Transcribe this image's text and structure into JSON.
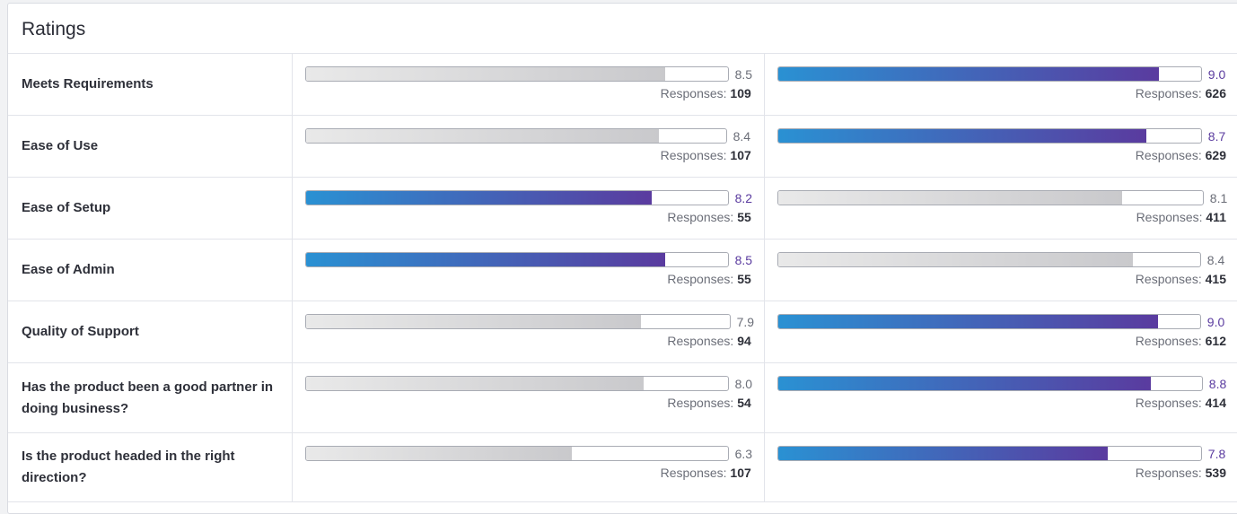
{
  "card": {
    "title": "Ratings"
  },
  "responses_label": "Responses:",
  "colors": {
    "accent_start": "#2a91d3",
    "accent_end": "#5a3b9f",
    "neutral_bar": "#c9c9cc"
  },
  "rows": [
    {
      "label": "Meets Requirements",
      "left": {
        "score": "8.5",
        "responses": "109",
        "highlight": false
      },
      "right": {
        "score": "9.0",
        "responses": "626",
        "highlight": true
      }
    },
    {
      "label": "Ease of Use",
      "left": {
        "score": "8.4",
        "responses": "107",
        "highlight": false
      },
      "right": {
        "score": "8.7",
        "responses": "629",
        "highlight": true
      }
    },
    {
      "label": "Ease of Setup",
      "left": {
        "score": "8.2",
        "responses": "55",
        "highlight": true
      },
      "right": {
        "score": "8.1",
        "responses": "411",
        "highlight": false
      }
    },
    {
      "label": "Ease of Admin",
      "left": {
        "score": "8.5",
        "responses": "55",
        "highlight": true
      },
      "right": {
        "score": "8.4",
        "responses": "415",
        "highlight": false
      }
    },
    {
      "label": "Quality of Support",
      "left": {
        "score": "7.9",
        "responses": "94",
        "highlight": false
      },
      "right": {
        "score": "9.0",
        "responses": "612",
        "highlight": true
      }
    },
    {
      "label": "Has the product been a good partner in doing business?",
      "left": {
        "score": "8.0",
        "responses": "54",
        "highlight": false
      },
      "right": {
        "score": "8.8",
        "responses": "414",
        "highlight": true
      }
    },
    {
      "label": "Is the product headed in the right direction?",
      "left": {
        "score": "6.3",
        "responses": "107",
        "highlight": false
      },
      "right": {
        "score": "7.8",
        "responses": "539",
        "highlight": true
      }
    }
  ]
}
